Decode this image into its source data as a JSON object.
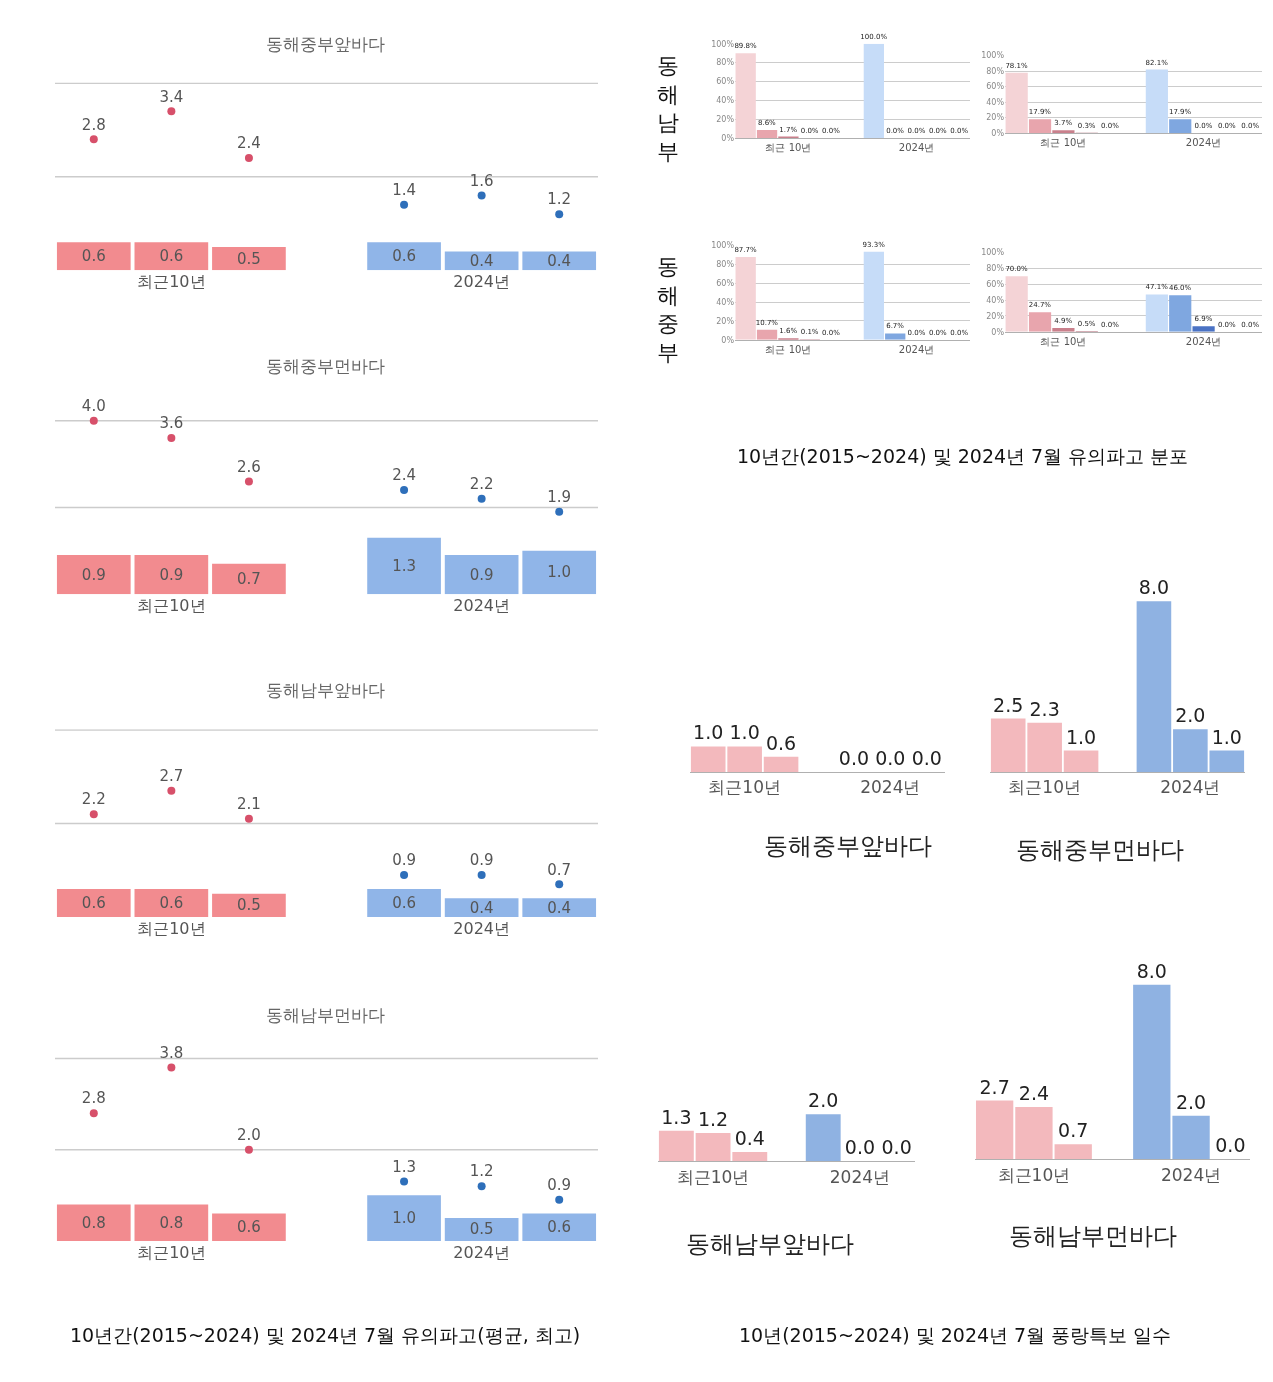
{
  "chart_data": [
    {
      "type": "bar",
      "title": "동해중부앞바다",
      "categories": [
        null,
        "최근10년",
        null,
        null,
        null,
        "2024년",
        null
      ],
      "ref_lines": [
        {
          "axis": "y",
          "value": 2,
          "color": "#cccccc"
        },
        {
          "axis": "y",
          "value": 4,
          "color": "#cccccc"
        }
      ],
      "tick_labels": "x",
      "marker": "circle",
      "series": [
        {
          "type": "bar",
          "values": [
            0.6,
            0.6,
            0.5,
            null,
            0.6,
            0.4,
            0.4
          ],
          "value_labels": [
            "0.6",
            "0.6",
            "0.5",
            null,
            "0.6",
            "0.4",
            "0.4"
          ],
          "colors": [
            "#f28b8f",
            "#f28b8f",
            "#f28b8f",
            null,
            "#90b5e8",
            "#90b5e8",
            "#90b5e8"
          ]
        },
        {
          "type": "scatter",
          "values": [
            2.8,
            3.4,
            2.4,
            null,
            1.4,
            1.6,
            1.2
          ],
          "value_labels": [
            "2.8",
            "3.4",
            "2.4",
            null,
            "1.4",
            "1.6",
            "1.2"
          ],
          "colors": [
            "#d7506a",
            "#d7506a",
            "#d7506a",
            null,
            "#2e6fba",
            "#2e6fba",
            "#2e6fba"
          ]
        }
      ]
    },
    {
      "type": "bar",
      "title": "동해중부먼바다",
      "categories": [
        null,
        "최근10년",
        null,
        null,
        null,
        "2024년",
        null
      ],
      "ref_lines": [
        {
          "axis": "y",
          "value": 2,
          "color": "#cccccc"
        },
        {
          "axis": "y",
          "value": 4,
          "color": "#cccccc"
        }
      ],
      "tick_labels": "x",
      "marker": "circle",
      "series": [
        {
          "type": "bar",
          "values": [
            0.9,
            0.9,
            0.7,
            null,
            1.3,
            0.9,
            1.0
          ],
          "value_labels": [
            "0.9",
            "0.9",
            "0.7",
            null,
            "1.3",
            "0.9",
            "1.0"
          ],
          "colors": [
            "#f28b8f",
            "#f28b8f",
            "#f28b8f",
            null,
            "#90b5e8",
            "#90b5e8",
            "#90b5e8"
          ]
        },
        {
          "type": "scatter",
          "values": [
            4.0,
            3.6,
            2.6,
            null,
            2.4,
            2.2,
            1.9
          ],
          "value_labels": [
            "4.0",
            "3.6",
            "2.6",
            null,
            "2.4",
            "2.2",
            "1.9"
          ],
          "colors": [
            "#d7506a",
            "#d7506a",
            "#d7506a",
            null,
            "#2e6fba",
            "#2e6fba",
            "#2e6fba"
          ]
        }
      ]
    },
    {
      "type": "bar",
      "title": "동해남부앞바다",
      "categories": [
        null,
        "최근10년",
        null,
        null,
        null,
        "2024년",
        null
      ],
      "ref_lines": [
        {
          "axis": "y",
          "value": 2,
          "color": "#cccccc"
        },
        {
          "axis": "y",
          "value": 4,
          "color": "#cccccc"
        }
      ],
      "tick_labels": "x",
      "marker": "circle",
      "series": [
        {
          "type": "bar",
          "values": [
            0.6,
            0.6,
            0.5,
            null,
            0.6,
            0.4,
            0.4
          ],
          "value_labels": [
            "0.6",
            "0.6",
            "0.5",
            null,
            "0.6",
            "0.4",
            "0.4"
          ],
          "colors": [
            "#f28b8f",
            "#f28b8f",
            "#f28b8f",
            null,
            "#90b5e8",
            "#90b5e8",
            "#90b5e8"
          ]
        },
        {
          "type": "scatter",
          "values": [
            2.2,
            2.7,
            2.1,
            null,
            0.9,
            0.9,
            0.7
          ],
          "value_labels": [
            "2.2",
            "2.7",
            "2.1",
            null,
            "0.9",
            "0.9",
            "0.7"
          ],
          "colors": [
            "#d7506a",
            "#d7506a",
            "#d7506a",
            null,
            "#2e6fba",
            "#2e6fba",
            "#2e6fba"
          ]
        }
      ]
    },
    {
      "type": "bar",
      "title": "동해남부먼바다",
      "categories": [
        null,
        "최근10년",
        null,
        null,
        null,
        "2024년",
        null
      ],
      "ref_lines": [
        {
          "axis": "y",
          "value": 2,
          "color": "#cccccc"
        },
        {
          "axis": "y",
          "value": 4,
          "color": "#cccccc"
        }
      ],
      "tick_labels": "x",
      "marker": "circle",
      "annotations": [
        "10년간(2015~2024) 및 2024년 7월 유의파고(평균, 최고)"
      ],
      "series": [
        {
          "type": "bar",
          "values": [
            0.8,
            0.8,
            0.6,
            null,
            1.0,
            0.5,
            0.6
          ],
          "value_labels": [
            "0.8",
            "0.8",
            "0.6",
            null,
            "1.0",
            "0.5",
            "0.6"
          ],
          "colors": [
            "#f28b8f",
            "#f28b8f",
            "#f28b8f",
            null,
            "#90b5e8",
            "#90b5e8",
            "#90b5e8"
          ]
        },
        {
          "type": "scatter",
          "values": [
            2.8,
            3.8,
            2.0,
            null,
            1.3,
            1.2,
            0.9
          ],
          "value_labels": [
            "2.8",
            "3.8",
            "2.0",
            null,
            "1.3",
            "1.2",
            "0.9"
          ],
          "colors": [
            "#d7506a",
            "#d7506a",
            "#d7506a",
            null,
            "#2e6fba",
            "#2e6fba",
            "#2e6fba"
          ]
        }
      ]
    },
    {
      "type": "bar",
      "categories": [
        null,
        null,
        "최근 10년",
        null,
        null,
        null,
        null,
        null,
        "2024년",
        null,
        null
      ],
      "ylim": [
        0,
        100
      ],
      "yticks": [
        {
          "value": 0,
          "label": "0%"
        },
        {
          "value": 20,
          "label": "20%"
        },
        {
          "value": 40,
          "label": "40%"
        },
        {
          "value": 60,
          "label": "60%"
        },
        {
          "value": 80,
          "label": "80%"
        },
        {
          "value": 100,
          "label": "100%"
        }
      ],
      "grid": "y",
      "annotations": [
        "동해남부"
      ],
      "values": [
        89.8,
        8.6,
        1.7,
        0.0,
        0.0,
        null,
        100.0,
        0.0,
        0.0,
        0.0,
        0.0
      ],
      "value_labels": [
        "89.8%",
        "8.6%",
        "1.7%",
        "0.0%",
        "0.0%",
        null,
        "100.0%",
        "0.0%",
        "0.0%",
        "0.0%",
        "0.0%"
      ],
      "colors": [
        "#f4d3d6",
        "#e8a5ad",
        "#c9808c",
        "#b5707d",
        "#a0606d",
        null,
        "#c6dcf8",
        "#7fa7e0",
        "#4a72c4",
        "#3a5fa8",
        "#2f4f90"
      ]
    },
    {
      "type": "bar",
      "categories": [
        null,
        null,
        "최근 10년",
        null,
        null,
        null,
        null,
        null,
        "2024년",
        null,
        null
      ],
      "ylim": [
        0,
        100
      ],
      "yticks": [
        {
          "value": 0,
          "label": "0%"
        },
        {
          "value": 20,
          "label": "20%"
        },
        {
          "value": 40,
          "label": "40%"
        },
        {
          "value": 60,
          "label": "60%"
        },
        {
          "value": 80,
          "label": "80%"
        },
        {
          "value": 100,
          "label": "100%"
        }
      ],
      "grid": "y",
      "values": [
        78.1,
        17.9,
        3.7,
        0.3,
        0.0,
        null,
        82.1,
        17.9,
        0.0,
        0.0,
        0.0
      ],
      "value_labels": [
        "78.1%",
        "17.9%",
        "3.7%",
        "0.3%",
        "0.0%",
        null,
        "82.1%",
        "17.9%",
        "0.0%",
        "0.0%",
        "0.0%"
      ],
      "colors": [
        "#f4d3d6",
        "#e8a5ad",
        "#c9808c",
        "#b5707d",
        "#a0606d",
        null,
        "#c6dcf8",
        "#7fa7e0",
        "#4a72c4",
        "#3a5fa8",
        "#2f4f90"
      ]
    },
    {
      "type": "bar",
      "categories": [
        null,
        null,
        "최근 10년",
        null,
        null,
        null,
        null,
        null,
        "2024년",
        null,
        null
      ],
      "ylim": [
        0,
        100
      ],
      "yticks": [
        {
          "value": 0,
          "label": "0%"
        },
        {
          "value": 20,
          "label": "20%"
        },
        {
          "value": 40,
          "label": "40%"
        },
        {
          "value": 60,
          "label": "60%"
        },
        {
          "value": 80,
          "label": "80%"
        },
        {
          "value": 100,
          "label": "100%"
        }
      ],
      "grid": "y",
      "annotations": [
        "동해중부"
      ],
      "values": [
        87.7,
        10.7,
        1.6,
        0.1,
        0.0,
        null,
        93.3,
        6.7,
        0.0,
        0.0,
        0.0
      ],
      "value_labels": [
        "87.7%",
        "10.7%",
        "1.6%",
        "0.1%",
        "0.0%",
        null,
        "93.3%",
        "6.7%",
        "0.0%",
        "0.0%",
        "0.0%"
      ],
      "colors": [
        "#f4d3d6",
        "#e8a5ad",
        "#c9808c",
        "#b5707d",
        "#a0606d",
        null,
        "#c6dcf8",
        "#7fa7e0",
        "#4a72c4",
        "#3a5fa8",
        "#2f4f90"
      ]
    },
    {
      "type": "bar",
      "categories": [
        null,
        null,
        "최근 10년",
        null,
        null,
        null,
        null,
        null,
        "2024년",
        null,
        null
      ],
      "ylim": [
        0,
        100
      ],
      "yticks": [
        {
          "value": 0,
          "label": "0%"
        },
        {
          "value": 20,
          "label": "20%"
        },
        {
          "value": 40,
          "label": "40%"
        },
        {
          "value": 60,
          "label": "60%"
        },
        {
          "value": 80,
          "label": "80%"
        },
        {
          "value": 100,
          "label": "100%"
        }
      ],
      "grid": "y",
      "annotations": [
        "10년간(2015~2024) 및 2024년 7월 유의파고 분포"
      ],
      "values": [
        70.0,
        24.7,
        4.9,
        0.5,
        0.0,
        null,
        47.1,
        46.0,
        6.9,
        0.0,
        0.0
      ],
      "value_labels": [
        "70.0%",
        "24.7%",
        "4.9%",
        "0.5%",
        "0.0%",
        null,
        "47.1%",
        "46.0%",
        "6.9%",
        "0.0%",
        "0.0%"
      ],
      "colors": [
        "#f4d3d6",
        "#e8a5ad",
        "#c9808c",
        "#b5707d",
        "#a0606d",
        null,
        "#c6dcf8",
        "#7fa7e0",
        "#4a72c4",
        "#3a5fa8",
        "#2f4f90"
      ]
    },
    {
      "type": "bar",
      "title": "동해중부앞바다",
      "categories": [
        null,
        "최근10년",
        null,
        null,
        null,
        "2024년",
        null
      ],
      "tick_labels": "x",
      "values": [
        1.0,
        1.0,
        0.6,
        null,
        0.0,
        0.0,
        0.0
      ],
      "value_labels": [
        "1.0",
        "1.0",
        "0.6",
        null,
        "0.0",
        "0.0",
        "0.0"
      ],
      "colors": [
        "#f3b9bd",
        "#f3b9bd",
        "#f3b9bd",
        null,
        "#8fb2e2",
        "#8fb2e2",
        "#8fb2e2"
      ]
    },
    {
      "type": "bar",
      "title": "동해중부먼바다",
      "categories": [
        null,
        "최근10년",
        null,
        null,
        null,
        "2024년",
        null
      ],
      "tick_labels": "x",
      "values": [
        2.5,
        2.3,
        1.0,
        null,
        8.0,
        2.0,
        1.0
      ],
      "value_labels": [
        "2.5",
        "2.3",
        "1.0",
        null,
        "8.0",
        "2.0",
        "1.0"
      ],
      "colors": [
        "#f3b9bd",
        "#f3b9bd",
        "#f3b9bd",
        null,
        "#8fb2e2",
        "#8fb2e2",
        "#8fb2e2"
      ]
    },
    {
      "type": "bar",
      "title": "동해남부앞바다",
      "categories": [
        null,
        "최근10년",
        null,
        null,
        null,
        "2024년",
        null
      ],
      "tick_labels": "x",
      "values": [
        1.3,
        1.2,
        0.4,
        null,
        2.0,
        0.0,
        0.0
      ],
      "value_labels": [
        "1.3",
        "1.2",
        "0.4",
        null,
        "2.0",
        "0.0",
        "0.0"
      ],
      "colors": [
        "#f3b9bd",
        "#f3b9bd",
        "#f3b9bd",
        null,
        "#8fb2e2",
        "#8fb2e2",
        "#8fb2e2"
      ]
    },
    {
      "type": "bar",
      "title": "동해남부먼바다",
      "categories": [
        null,
        "최근10년",
        null,
        null,
        null,
        "2024년",
        null
      ],
      "tick_labels": "x",
      "annotations": [
        "10년(2015~2024) 및 2024년 7월 풍랑특보 일수"
      ],
      "values": [
        2.7,
        2.4,
        0.7,
        null,
        8.0,
        2.0,
        0.0
      ],
      "value_labels": [
        "2.7",
        "2.4",
        "0.7",
        null,
        "8.0",
        "2.0",
        "0.0"
      ],
      "colors": [
        "#f3b9bd",
        "#f3b9bd",
        "#f3b9bd",
        null,
        "#8fb2e2",
        "#8fb2e2",
        "#8fb2e2"
      ]
    }
  ]
}
